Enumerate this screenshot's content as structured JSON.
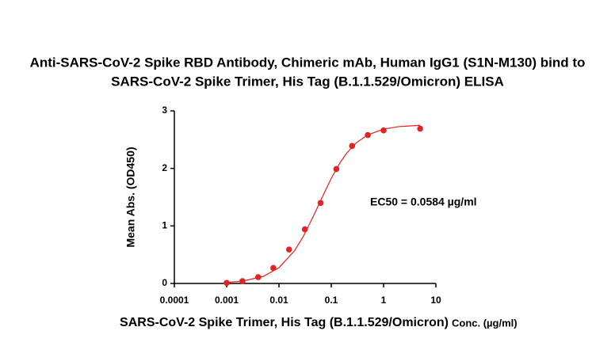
{
  "chart_data": {
    "type": "scatter",
    "title": [
      "Anti-SARS-CoV-2 Spike RBD Antibody, Chimeric mAb, Human IgG1 (S1N-M130) bind to",
      "SARS-CoV-2 Spike Trimer, His Tag (B.1.1.529/Omicron) ELISA"
    ],
    "xlabel": "SARS-CoV-2 Spike Trimer, His Tag (B.1.1.529/Omicron)",
    "xlabel_unit": "Conc. (µg/ml)",
    "ylabel": "Mean Abs. (OD450)",
    "annotation": "EC50 = 0.0584 µg/ml",
    "xscale": "log",
    "xlim": [
      0.0001,
      10
    ],
    "xticks": [
      0.0001,
      0.001,
      0.01,
      0.1,
      1,
      10
    ],
    "ylim": [
      0,
      3
    ],
    "yticks": [
      0,
      1,
      2,
      3
    ],
    "series": [
      {
        "type": "scatter",
        "color": "#e32222",
        "x": [
          0.001,
          0.002,
          0.004,
          0.0078,
          0.0156,
          0.03125,
          0.0625,
          0.125,
          0.25,
          0.5,
          1,
          5
        ],
        "values": [
          0.01,
          0.04,
          0.11,
          0.27,
          0.59,
          0.94,
          1.4,
          1.99,
          2.39,
          2.58,
          2.66,
          2.69
        ]
      },
      {
        "type": "line",
        "color": "#e32222",
        "x": [
          0.001,
          0.002,
          0.005,
          0.01,
          0.02,
          0.03,
          0.05,
          0.07,
          0.1,
          0.15,
          0.2,
          0.3,
          0.5,
          1,
          2,
          5
        ],
        "values": [
          0.017,
          0.04,
          0.122,
          0.274,
          0.573,
          0.836,
          1.247,
          1.535,
          1.827,
          2.111,
          2.272,
          2.444,
          2.583,
          2.683,
          2.727,
          2.749
        ]
      }
    ]
  }
}
